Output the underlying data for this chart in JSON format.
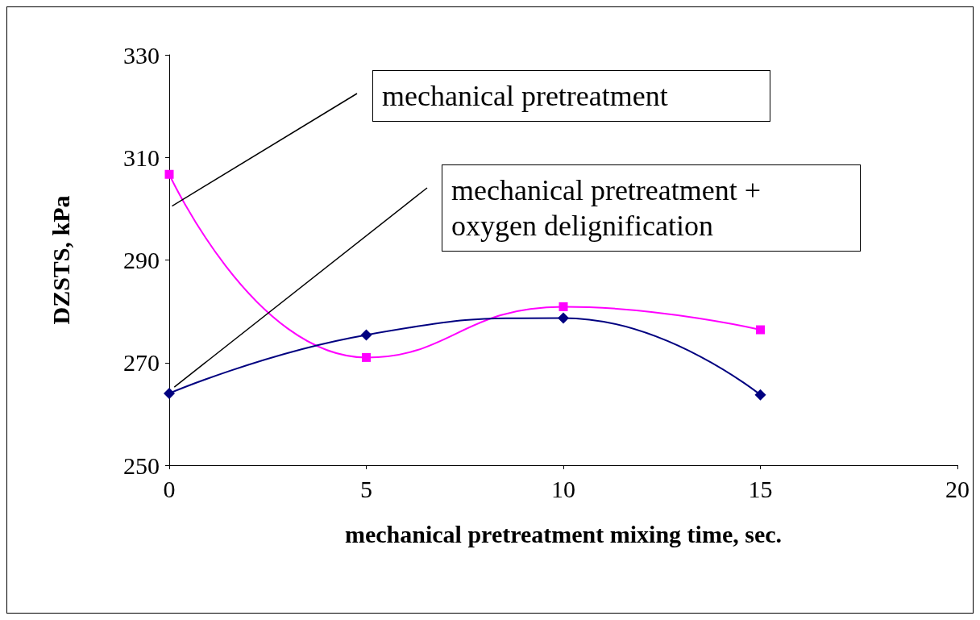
{
  "chart_data": {
    "type": "line",
    "xlabel": "mechanical pretreatment mixing time, sec.",
    "ylabel": "DZSTS, kPa",
    "x": [
      0,
      5,
      10,
      15
    ],
    "series": [
      {
        "name": "mechanical pretreatment",
        "color": "#ff00ff",
        "marker": "square",
        "values": [
          306.7,
          271.0,
          280.9,
          276.4
        ]
      },
      {
        "name": "mechanical pretreatment + oxygen delignification",
        "color": "#000080",
        "marker": "diamond",
        "values": [
          264.0,
          275.4,
          278.7,
          263.7
        ]
      }
    ],
    "xlim": [
      0,
      20
    ],
    "xticks": [
      0,
      5,
      10,
      15,
      20
    ],
    "ylim": [
      250,
      330
    ],
    "yticks": [
      250,
      270,
      290,
      310,
      330
    ],
    "grid": false,
    "line_style": "solid"
  }
}
